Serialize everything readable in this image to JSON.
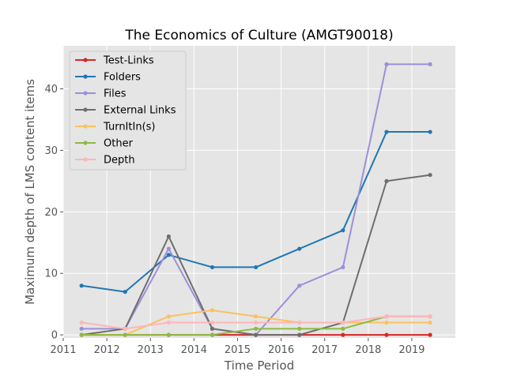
{
  "chart_data": {
    "type": "line",
    "title": "The Economics of Culture (AMGT90018)",
    "xlabel": "Time Period",
    "ylabel": "Maximum depth of LMS content items",
    "xlim": [
      2011.0,
      2020.0
    ],
    "ylim": [
      -0.5,
      47.0
    ],
    "x_ticks": [
      "2011",
      "2012",
      "2013",
      "2014",
      "2015",
      "2016",
      "2017",
      "2018",
      "2019"
    ],
    "y_ticks": [
      "0",
      "10",
      "20",
      "30",
      "40"
    ],
    "x": [
      2011.42,
      2012.42,
      2013.42,
      2014.42,
      2015.42,
      2016.42,
      2017.42,
      2018.42,
      2019.42
    ],
    "grid": true,
    "legend_position": "top-left",
    "series": [
      {
        "name": "Test-Links",
        "color": "#d62728",
        "values": [
          0,
          0,
          0,
          0,
          0,
          0,
          0,
          0,
          0
        ]
      },
      {
        "name": "Folders",
        "color": "#1f77b4",
        "values": [
          8,
          7,
          13,
          11,
          11,
          14,
          17,
          33,
          33
        ]
      },
      {
        "name": "Files",
        "color": "#9e8ed9",
        "values": [
          1,
          1,
          14,
          1,
          0,
          8,
          11,
          44,
          44
        ]
      },
      {
        "name": "External Links",
        "color": "#6e6e6e",
        "values": [
          0,
          1,
          16,
          1,
          0,
          0,
          2,
          25,
          26
        ]
      },
      {
        "name": "TurnItIn(s)",
        "color": "#fbc15e",
        "values": [
          0,
          0,
          3,
          4,
          3,
          2,
          2,
          2,
          2
        ]
      },
      {
        "name": "Other",
        "color": "#8eba42",
        "values": [
          0,
          0,
          0,
          0,
          1,
          1,
          1,
          3,
          3
        ]
      },
      {
        "name": "Depth",
        "color": "#ffb5b8",
        "values": [
          2,
          1,
          2,
          2,
          2,
          2,
          2,
          3,
          3
        ]
      }
    ]
  }
}
